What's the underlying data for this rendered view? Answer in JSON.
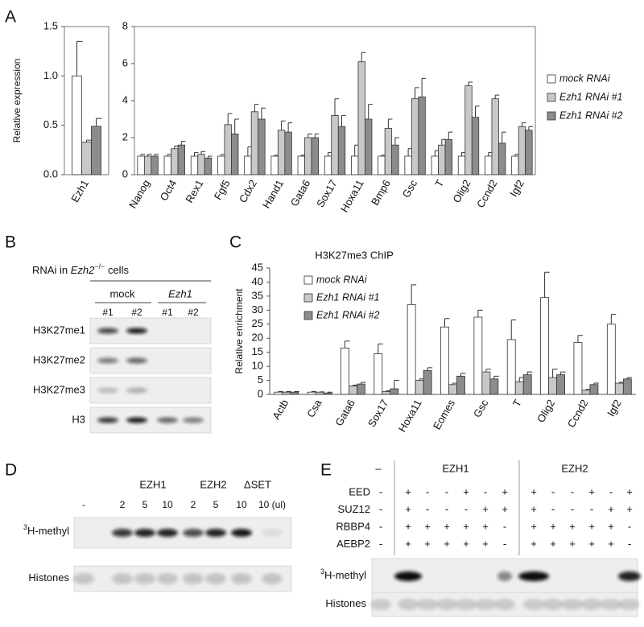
{
  "panel_labels": [
    "A",
    "B",
    "C",
    "D",
    "E"
  ],
  "chart_data": [
    {
      "type": "bar",
      "ylabel": "Relative expression",
      "categories": [
        "Ezh1"
      ],
      "series": [
        {
          "color": "#ffffff",
          "values": [
            1.0
          ],
          "errors": [
            0.35
          ]
        },
        {
          "color": "#c8c8c8",
          "values": [
            0.33
          ],
          "errors": [
            0.02
          ]
        },
        {
          "color": "#8c8c8c",
          "values": [
            0.49
          ],
          "errors": [
            0.08
          ]
        }
      ],
      "ylim": [
        0,
        1.5
      ],
      "yticks": [
        {
          "value": 0,
          "label": "0.0"
        },
        0.5,
        {
          "value": 1,
          "label": "1.0"
        },
        1.5
      ]
    },
    {
      "type": "bar",
      "legend": "right",
      "categories": [
        "Nanog",
        "Oct4",
        "Rex1",
        "Fgf5",
        "Cdx2",
        "Hand1",
        "Gata6",
        "Sox17",
        "Hoxa11",
        "Bmp6",
        "Gsc",
        "T",
        "Olig2",
        "Ccnd2",
        "Igf2"
      ],
      "series": [
        {
          "name": "mock RNAi",
          "color": "#ffffff",
          "values": [
            1.0,
            1.0,
            1.0,
            1.0,
            1.0,
            1.0,
            1.0,
            1.0,
            1.0,
            1.0,
            1.0,
            1.0,
            1.0,
            1.0,
            1.0
          ],
          "errors": [
            0.1,
            0.1,
            0.2,
            0.1,
            0.5,
            0.05,
            0.05,
            0.2,
            0.6,
            0.05,
            0.4,
            0.3,
            0.2,
            0.2,
            0.1
          ]
        },
        {
          "name": "Ezh1 RNAi #1",
          "color": "#c8c8c8",
          "values": [
            1.0,
            1.4,
            1.1,
            2.7,
            3.4,
            2.4,
            2.0,
            3.2,
            6.1,
            2.5,
            4.1,
            1.6,
            4.8,
            4.1,
            2.6
          ],
          "errors": [
            0.1,
            0.15,
            0.15,
            0.6,
            0.4,
            0.5,
            0.2,
            0.9,
            0.5,
            0.5,
            0.6,
            0.3,
            0.2,
            0.2,
            0.2
          ]
        },
        {
          "name": "Ezh1 RNAi #2",
          "color": "#8c8c8c",
          "values": [
            1.0,
            1.6,
            0.9,
            2.2,
            3.0,
            2.3,
            2.0,
            2.6,
            3.0,
            1.6,
            4.2,
            1.9,
            3.1,
            1.7,
            2.4
          ],
          "errors": [
            0.1,
            0.2,
            0.1,
            0.8,
            0.6,
            0.5,
            0.2,
            0.6,
            0.8,
            0.4,
            1.0,
            0.4,
            0.6,
            0.6,
            0.2
          ]
        }
      ],
      "ylim": [
        0,
        8
      ],
      "yticks": [
        0,
        2,
        4,
        6,
        8
      ]
    },
    {
      "type": "bar",
      "title": "H3K27me3 ChIP",
      "ylabel": "Relative enrichment",
      "legend": "upper left",
      "categories": [
        "Actb",
        "Csa",
        "Gata6",
        "Sox17",
        "Hoxa11",
        "Eomes",
        "Gsc",
        "T",
        "Olig2",
        "Ccnd2",
        "Igf2"
      ],
      "series": [
        {
          "name": "mock RNAi",
          "color": "#ffffff",
          "values": [
            0.8,
            0.8,
            16.5,
            14.5,
            32,
            24,
            27.5,
            19.5,
            34.5,
            18.5,
            25
          ],
          "errors": [
            0.2,
            0.2,
            2.5,
            3.5,
            7,
            3,
            2.5,
            7,
            9,
            2.5,
            3.5
          ]
        },
        {
          "name": "Ezh1 RNAi #1",
          "color": "#c8c8c8",
          "values": [
            0.8,
            0.8,
            3,
            1,
            5,
            3.5,
            8,
            4.5,
            6,
            1.5,
            4
          ],
          "errors": [
            0.2,
            0.1,
            0.3,
            0.3,
            0.5,
            0.5,
            1,
            1.5,
            3,
            0.3,
            0.3
          ]
        },
        {
          "name": "Ezh1 RNAi #2",
          "color": "#8c8c8c",
          "values": [
            0.8,
            0.5,
            3.7,
            2,
            8.5,
            6.5,
            5.5,
            7,
            7,
            3.5,
            5.5
          ],
          "errors": [
            0.2,
            0.3,
            0.6,
            3,
            1,
            1,
            1,
            1,
            1,
            0.5,
            0.5
          ]
        }
      ],
      "ylim": [
        0,
        45
      ],
      "yticks": [
        0,
        5,
        10,
        15,
        20,
        25,
        30,
        35,
        40,
        45
      ]
    }
  ],
  "blot_B": {
    "title": [
      "RNAi in ",
      "Ezh2",
      "−/−",
      " cells"
    ],
    "groups": [
      "mock",
      "Ezh1"
    ],
    "lanes": [
      "#1",
      "#2",
      "#1",
      "#2"
    ],
    "rows": [
      "H3K27me1",
      "H3K27me2",
      "H3K27me3",
      "H3"
    ]
  },
  "blot_D": {
    "groups": [
      "EZH1",
      "EZH2",
      "ΔSET"
    ],
    "lanes": [
      "-",
      "2",
      "5",
      "10",
      "2",
      "5",
      "10",
      "10 (ul)"
    ],
    "rows": [
      {
        "sup": "3",
        "text": "H-methyl"
      },
      {
        "text": "Histones"
      }
    ]
  },
  "blot_E": {
    "groups": [
      "–",
      "EZH1",
      "EZH2"
    ],
    "components": [
      {
        "name": "EED",
        "marks": [
          "-",
          "+",
          "-",
          "-",
          "+",
          "-",
          "+",
          "+",
          "-",
          "-",
          "+",
          "-",
          "+"
        ]
      },
      {
        "name": "SUZ12",
        "marks": [
          "-",
          "+",
          "-",
          "-",
          "-",
          "+",
          "+",
          "+",
          "-",
          "-",
          "-",
          "+",
          "+"
        ]
      },
      {
        "name": "RBBP4",
        "marks": [
          "-",
          "+",
          "+",
          "+",
          "+",
          "+",
          "-",
          "+",
          "+",
          "+",
          "+",
          "+",
          "-"
        ]
      },
      {
        "name": "AEBP2",
        "marks": [
          "-",
          "+",
          "+",
          "+",
          "+",
          "+",
          "-",
          "+",
          "+",
          "+",
          "+",
          "+",
          "-"
        ]
      }
    ],
    "rows": [
      {
        "sup": "3",
        "text": "H-methyl"
      },
      {
        "text": "Histones"
      }
    ]
  }
}
